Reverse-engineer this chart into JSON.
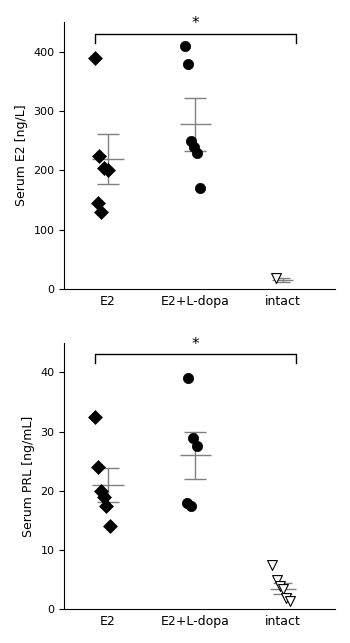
{
  "top_panel": {
    "ylabel": "Serum E2 [ng/L]",
    "ylim": [
      0,
      450
    ],
    "yticks": [
      0,
      100,
      200,
      300,
      400
    ],
    "E2_points_x": [
      0.85,
      0.9,
      0.95,
      1.0,
      0.88,
      0.92
    ],
    "E2_points_y": [
      390,
      225,
      205,
      200,
      145,
      130
    ],
    "E2_mean": 220,
    "E2_mean_x": 1.0,
    "E2_mean_xL": 0.82,
    "E2_mean_xR": 1.18,
    "E2_sem": 42,
    "E2plus_points_x": [
      1.88,
      1.92,
      1.95,
      1.98,
      2.02,
      2.05
    ],
    "E2plus_points_y": [
      410,
      380,
      250,
      240,
      230,
      170
    ],
    "E2plus_mean": 278,
    "E2plus_mean_x": 2.0,
    "E2plus_mean_xL": 1.82,
    "E2plus_mean_xR": 2.18,
    "E2plus_sem": 45,
    "intact_points_x": [
      2.92
    ],
    "intact_points_y": [
      18
    ],
    "intact_mean": 15,
    "intact_mean_x": 3.0,
    "intact_mean_xL": 2.88,
    "intact_mean_xR": 3.12,
    "intact_sem": 3,
    "sig_bracket_y": 430,
    "sig_x1": 0.85,
    "sig_x2": 3.15,
    "sig_mid": 2.0,
    "sig_label": "*",
    "sig_drop": 15
  },
  "bottom_panel": {
    "ylabel": "Serum PRL [ng/mL]",
    "ylim": [
      0,
      45
    ],
    "yticks": [
      0,
      10,
      20,
      30,
      40
    ],
    "E2_points_x": [
      0.85,
      0.88,
      0.92,
      0.95,
      0.98,
      1.02
    ],
    "E2_points_y": [
      32.5,
      24,
      20,
      19,
      17.5,
      14
    ],
    "E2_mean": 21,
    "E2_mean_x": 1.0,
    "E2_mean_xL": 0.82,
    "E2_mean_xR": 1.18,
    "E2_sem": 2.8,
    "E2plus_points_x": [
      1.92,
      1.97,
      2.02,
      1.9,
      1.95
    ],
    "E2plus_points_y": [
      39,
      29,
      27.5,
      18,
      17.5
    ],
    "E2plus_mean": 26,
    "E2plus_mean_x": 2.0,
    "E2plus_mean_xL": 1.82,
    "E2plus_mean_xR": 2.18,
    "E2plus_sem": 4.0,
    "intact_points_x": [
      2.88,
      2.93,
      2.97,
      3.0,
      3.04,
      3.08
    ],
    "intact_points_y": [
      7.5,
      5.0,
      4.0,
      3.5,
      2.0,
      1.5
    ],
    "intact_mean": 3.5,
    "intact_mean_x": 3.0,
    "intact_mean_xL": 2.85,
    "intact_mean_xR": 3.15,
    "intact_sem": 0.9,
    "sig_bracket_y": 43,
    "sig_x1": 0.85,
    "sig_x2": 3.15,
    "sig_mid": 2.0,
    "sig_label": "*",
    "sig_drop": 1.5
  },
  "xlim": [
    0.5,
    3.6
  ],
  "xtick_labels": [
    "E2",
    "E2+L-dopa",
    "intact"
  ],
  "xtick_positions": [
    1,
    2,
    3
  ],
  "marker_color_filled": "black",
  "marker_color_open": "white",
  "marker_edge_color": "black",
  "errorbar_color": "gray",
  "errorbar_lw": 1.0,
  "errorbar_capsize": 4,
  "bracket_color": "black",
  "bracket_lw": 1.0,
  "fig_bg": "white"
}
